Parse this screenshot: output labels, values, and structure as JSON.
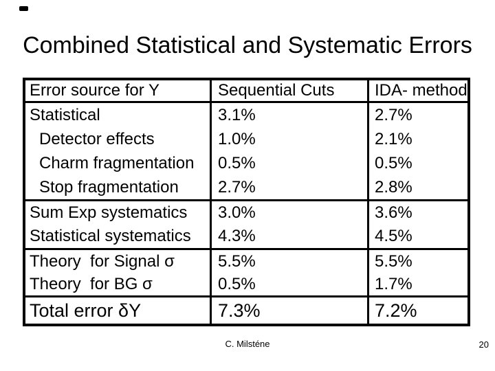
{
  "slide": {
    "title": "Combined Statistical and Systematic Errors",
    "footer": {
      "author": "C. Milsténe",
      "page_number": "20"
    }
  },
  "table": {
    "columns": [
      "Error source for Y",
      "Sequential Cuts",
      "IDA- method"
    ],
    "rows": [
      [
        "Statistical",
        "3.1%",
        "2.7%"
      ],
      [
        "Detector effects",
        "1.0%",
        "2.1%"
      ],
      [
        "Charm fragmentation",
        "0.5%",
        "0.5%"
      ],
      [
        "Stop fragmentation",
        "2.7%",
        "2.8%"
      ],
      [
        "Sum Exp systematics",
        "3.0%",
        "3.6%"
      ],
      [
        "Statistical systematics",
        "4.3%",
        "4.5%"
      ],
      [
        "Theory  for Signal σ",
        "5.5%",
        "5.5%"
      ],
      [
        "Theory  for BG σ",
        "0.5%",
        "1.7%"
      ],
      [
        "Total error δY",
        "7.3%",
        "7.2%"
      ]
    ]
  },
  "colors": {
    "background": "#ffffff",
    "text": "#000000",
    "border": "#000000",
    "corner_mark": "#000000"
  }
}
